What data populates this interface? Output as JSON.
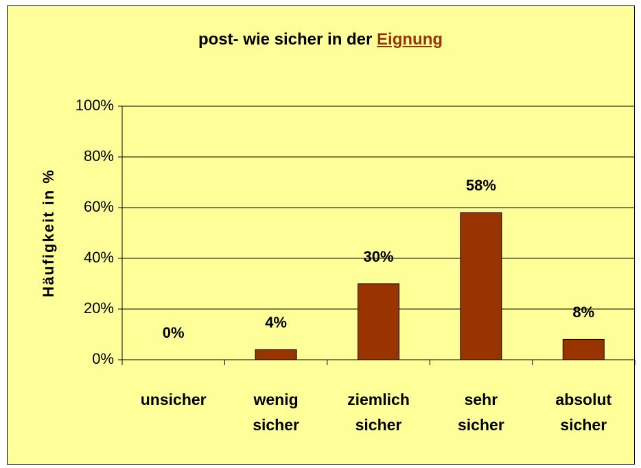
{
  "chart_data": {
    "type": "bar",
    "title": "post- wie sicher in der",
    "title_emphasis": "Eignung",
    "ylabel": "Häufigkeit in %",
    "categories": [
      "unsicher",
      "wenig sicher",
      "ziemlich sicher",
      "sehr sicher",
      "absolut sicher"
    ],
    "values": [
      0,
      4,
      30,
      58,
      8
    ],
    "value_labels": [
      "0%",
      "4%",
      "30%",
      "58%",
      "8%"
    ],
    "color": "#993300",
    "ylim": [
      0,
      100
    ],
    "yticks": [
      {
        "value": 0,
        "label": "0%"
      },
      {
        "value": 20,
        "label": "20%"
      },
      {
        "value": 40,
        "label": "40%"
      },
      {
        "value": 60,
        "label": "60%"
      },
      {
        "value": 80,
        "label": "80%"
      },
      {
        "value": 100,
        "label": "100%"
      }
    ],
    "grid": true
  }
}
